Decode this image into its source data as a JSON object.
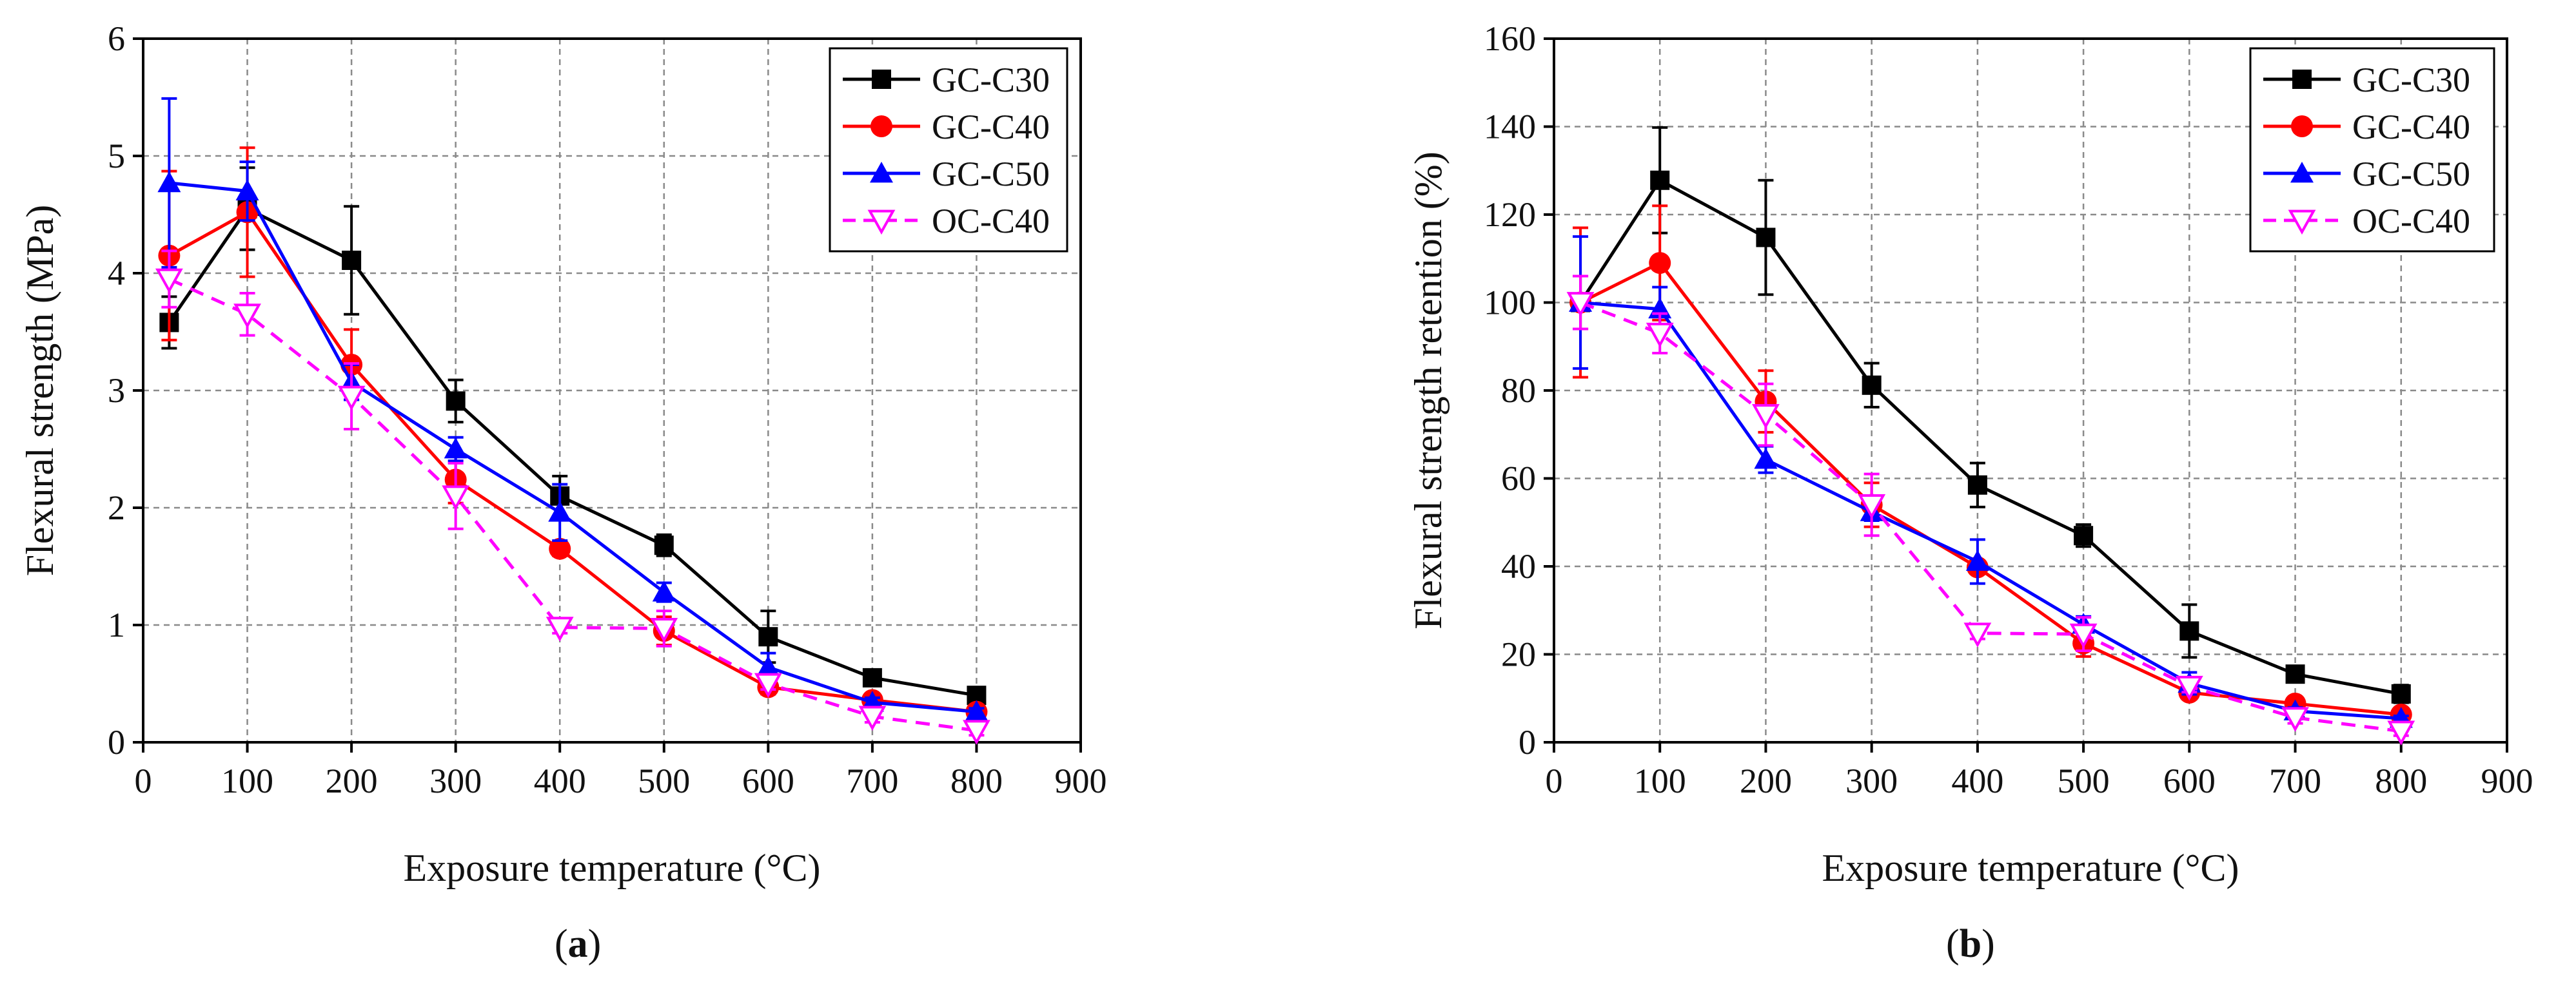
{
  "chart_data": [
    {
      "type": "line",
      "panel_label": "a",
      "xlabel": "Exposure temperature (°C)",
      "ylabel": "Flexural strength (MPa)",
      "xlim": [
        0,
        900
      ],
      "ylim": [
        0,
        6
      ],
      "xticks": [
        0,
        100,
        200,
        300,
        400,
        500,
        600,
        700,
        800,
        900
      ],
      "yticks": [
        0,
        1,
        2,
        3,
        4,
        5,
        6
      ],
      "grid": true,
      "legend_position": "top-right",
      "x": [
        25,
        100,
        200,
        300,
        400,
        500,
        600,
        700,
        800
      ],
      "series": [
        {
          "name": "GC-C30",
          "color": "#000000",
          "marker": "square",
          "dash": "solid",
          "values": [
            3.58,
            4.55,
            4.11,
            2.91,
            2.1,
            1.68,
            0.9,
            0.55,
            0.4
          ],
          "errors": [
            0.22,
            0.35,
            0.46,
            0.18,
            0.17,
            0.09,
            0.22,
            0.06,
            0.07
          ]
        },
        {
          "name": "GC-C40",
          "color": "#ff0000",
          "marker": "circle",
          "dash": "solid",
          "values": [
            4.15,
            4.52,
            3.22,
            2.24,
            1.65,
            0.95,
            0.47,
            0.36,
            0.26
          ],
          "errors": [
            0.72,
            0.55,
            0.3,
            0.2,
            0.06,
            0.12,
            0.06,
            0.04,
            0.04
          ]
        },
        {
          "name": "GC-C50",
          "color": "#0000ff",
          "marker": "triangle-up",
          "dash": "solid",
          "values": [
            4.77,
            4.7,
            3.07,
            2.5,
            1.96,
            1.28,
            0.64,
            0.34,
            0.26
          ],
          "errors": [
            0.72,
            0.25,
            0.15,
            0.1,
            0.24,
            0.08,
            0.12,
            0.04,
            0.03
          ]
        },
        {
          "name": "OC-C40",
          "color": "#ff00ff",
          "marker": "triangle-down-open",
          "dash": "dashed",
          "values": [
            3.95,
            3.65,
            2.95,
            2.1,
            0.98,
            0.97,
            0.5,
            0.22,
            0.1
          ],
          "errors": [
            0.24,
            0.18,
            0.28,
            0.28,
            0.05,
            0.15,
            0.05,
            0.05,
            0.04
          ]
        }
      ]
    },
    {
      "type": "line",
      "panel_label": "b",
      "xlabel": "Exposure temperature (°C)",
      "ylabel": "Flexural strength retention (%)",
      "xlim": [
        0,
        900
      ],
      "ylim": [
        0,
        160
      ],
      "xticks": [
        0,
        100,
        200,
        300,
        400,
        500,
        600,
        700,
        800,
        900
      ],
      "yticks": [
        0,
        20,
        40,
        60,
        80,
        100,
        120,
        140,
        160
      ],
      "grid": true,
      "legend_position": "top-right",
      "x": [
        25,
        100,
        200,
        300,
        400,
        500,
        600,
        700,
        800
      ],
      "series": [
        {
          "name": "GC-C30",
          "color": "#000000",
          "marker": "square",
          "dash": "solid",
          "values": [
            100,
            127.8,
            114.8,
            81.2,
            58.5,
            47.0,
            25.3,
            15.5,
            11.0
          ],
          "errors": [
            6.0,
            12.0,
            13.0,
            5.0,
            5.0,
            2.5,
            6.0,
            1.5,
            2.0
          ]
        },
        {
          "name": "GC-C40",
          "color": "#ff0000",
          "marker": "circle",
          "dash": "solid",
          "values": [
            100,
            109.0,
            77.5,
            54.0,
            39.8,
            22.5,
            11.3,
            8.8,
            6.3
          ],
          "errors": [
            17.0,
            13.0,
            7.0,
            5.0,
            1.5,
            3.0,
            1.5,
            1.0,
            1.0
          ]
        },
        {
          "name": "GC-C50",
          "color": "#0000ff",
          "marker": "triangle-up",
          "dash": "solid",
          "values": [
            100,
            98.5,
            64.3,
            52.4,
            41.1,
            26.8,
            13.4,
            7.1,
            5.4
          ],
          "errors": [
            15.0,
            5.0,
            3.0,
            2.0,
            5.0,
            1.8,
            2.5,
            0.8,
            0.6
          ]
        },
        {
          "name": "OC-C40",
          "color": "#ff00ff",
          "marker": "triangle-down-open",
          "dash": "dashed",
          "values": [
            100,
            93.0,
            74.5,
            54.0,
            24.8,
            24.6,
            12.7,
            5.6,
            2.5
          ],
          "errors": [
            6.0,
            4.5,
            7.0,
            7.0,
            1.3,
            3.8,
            1.3,
            1.3,
            1.0
          ]
        }
      ]
    }
  ]
}
